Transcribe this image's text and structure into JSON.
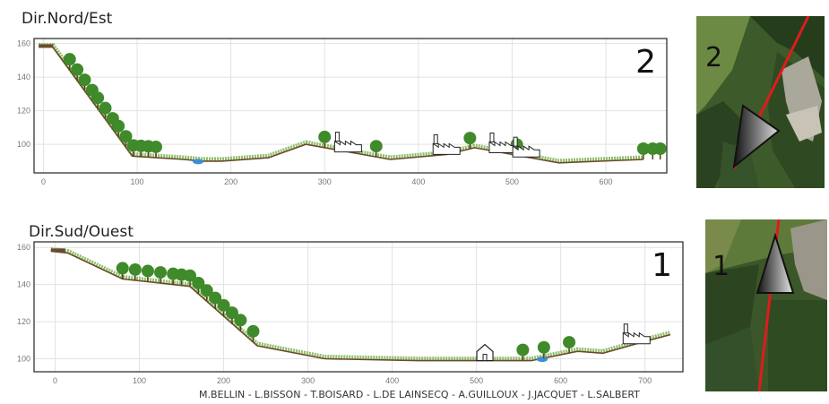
{
  "profiles": [
    {
      "id": "nord-est",
      "title": "Dir.Nord/Est",
      "number": "2",
      "x_ticks": [
        0,
        100,
        200,
        300,
        400,
        500,
        600
      ],
      "y_ticks": [
        100,
        120,
        140,
        160
      ],
      "x_range": [
        -10,
        665
      ],
      "y_range": [
        83,
        163
      ]
    },
    {
      "id": "sud-ouest",
      "title": "Dir.Sud/Ouest",
      "number": "1",
      "x_ticks": [
        0,
        100,
        200,
        300,
        400,
        500,
        600,
        700
      ],
      "y_ticks": [
        100,
        120,
        140,
        160
      ],
      "x_range": [
        -25,
        745
      ],
      "y_range": [
        93,
        163
      ]
    }
  ],
  "photos": [
    {
      "id": "photo-2",
      "number": "2"
    },
    {
      "id": "photo-1",
      "number": "1"
    }
  ],
  "credits": "M.BELLIN - L.BISSON - T.BOISARD - L.DE LAINSECQ - A.GUILLOUX - J.JACQUET - L.SALBERT",
  "colors": {
    "terrain": "#6b4a2c",
    "grass": "#8fbf6a",
    "tree": "#3f8a2a",
    "water": "#3a8fd6",
    "road_red": "#e01b1b"
  }
}
